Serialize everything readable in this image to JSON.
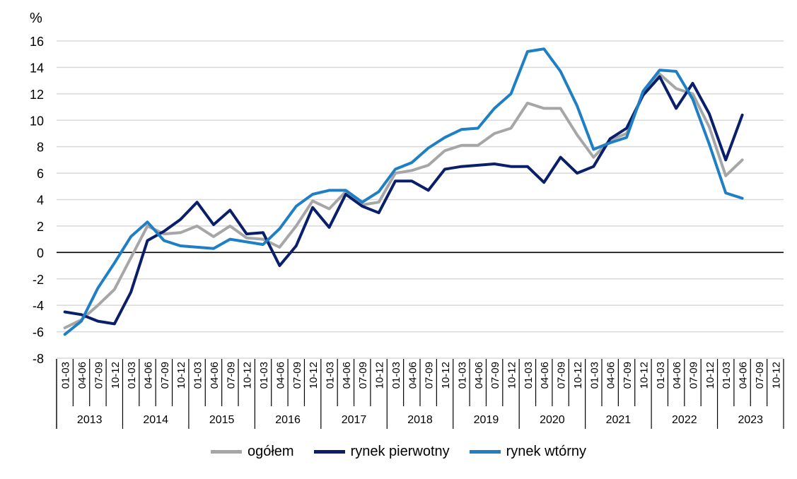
{
  "chart_data": {
    "type": "line",
    "ylabel": "%",
    "ylim": [
      -8,
      16
    ],
    "yticks": [
      -8,
      -6,
      -4,
      -2,
      0,
      2,
      4,
      6,
      8,
      10,
      12,
      14,
      16
    ],
    "ytick_labels": [
      "-8",
      "-6",
      "-4",
      "-2",
      "0",
      "2",
      "4",
      "6",
      "8",
      "10",
      "12",
      "14",
      "16"
    ],
    "grid": "horizontal",
    "legend_position": "bottom",
    "quarter_labels": [
      "01-03",
      "04-06",
      "07-09",
      "10-12"
    ],
    "years": [
      "2013",
      "2014",
      "2015",
      "2016",
      "2017",
      "2018",
      "2019",
      "2020",
      "2021",
      "2022",
      "2023"
    ],
    "series": [
      {
        "name": "ogółem",
        "color": "#a6a6a6",
        "values": [
          -5.7,
          -5.1,
          -4.0,
          -2.8,
          -0.4,
          2.0,
          1.4,
          1.5,
          2.0,
          1.2,
          2.0,
          1.1,
          1.0,
          0.4,
          2.0,
          3.9,
          3.3,
          4.6,
          3.6,
          3.8,
          6.0,
          6.2,
          6.6,
          7.7,
          8.1,
          8.1,
          9.0,
          9.4,
          11.3,
          10.9,
          10.9,
          8.9,
          7.2,
          8.5,
          9.0,
          12.0,
          13.5,
          12.4,
          12.0,
          9.5,
          5.8,
          7.0
        ]
      },
      {
        "name": "rynek pierwotny",
        "color": "#0a1f6b",
        "values": [
          -4.5,
          -4.7,
          -5.2,
          -5.4,
          -3.0,
          0.9,
          1.6,
          2.5,
          3.8,
          2.1,
          3.2,
          1.4,
          1.5,
          -1.0,
          0.5,
          3.4,
          1.9,
          4.4,
          3.5,
          3.0,
          5.4,
          5.4,
          4.7,
          6.3,
          6.5,
          6.6,
          6.7,
          6.5,
          6.5,
          5.3,
          7.2,
          6.0,
          6.5,
          8.6,
          9.4,
          11.9,
          13.3,
          10.9,
          12.8,
          10.5,
          7.0,
          10.4
        ]
      },
      {
        "name": "rynek wtórny",
        "color": "#1f7fc4",
        "values": [
          -6.2,
          -5.2,
          -2.7,
          -0.8,
          1.2,
          2.3,
          0.9,
          0.5,
          0.4,
          0.3,
          1.0,
          0.8,
          0.6,
          1.8,
          3.5,
          4.4,
          4.7,
          4.7,
          3.8,
          4.6,
          6.3,
          6.8,
          7.9,
          8.7,
          9.3,
          9.4,
          10.9,
          12.0,
          15.2,
          15.4,
          13.7,
          11.1,
          7.8,
          8.3,
          8.7,
          12.2,
          13.8,
          13.7,
          11.6,
          8.2,
          4.5,
          4.1
        ]
      }
    ]
  }
}
